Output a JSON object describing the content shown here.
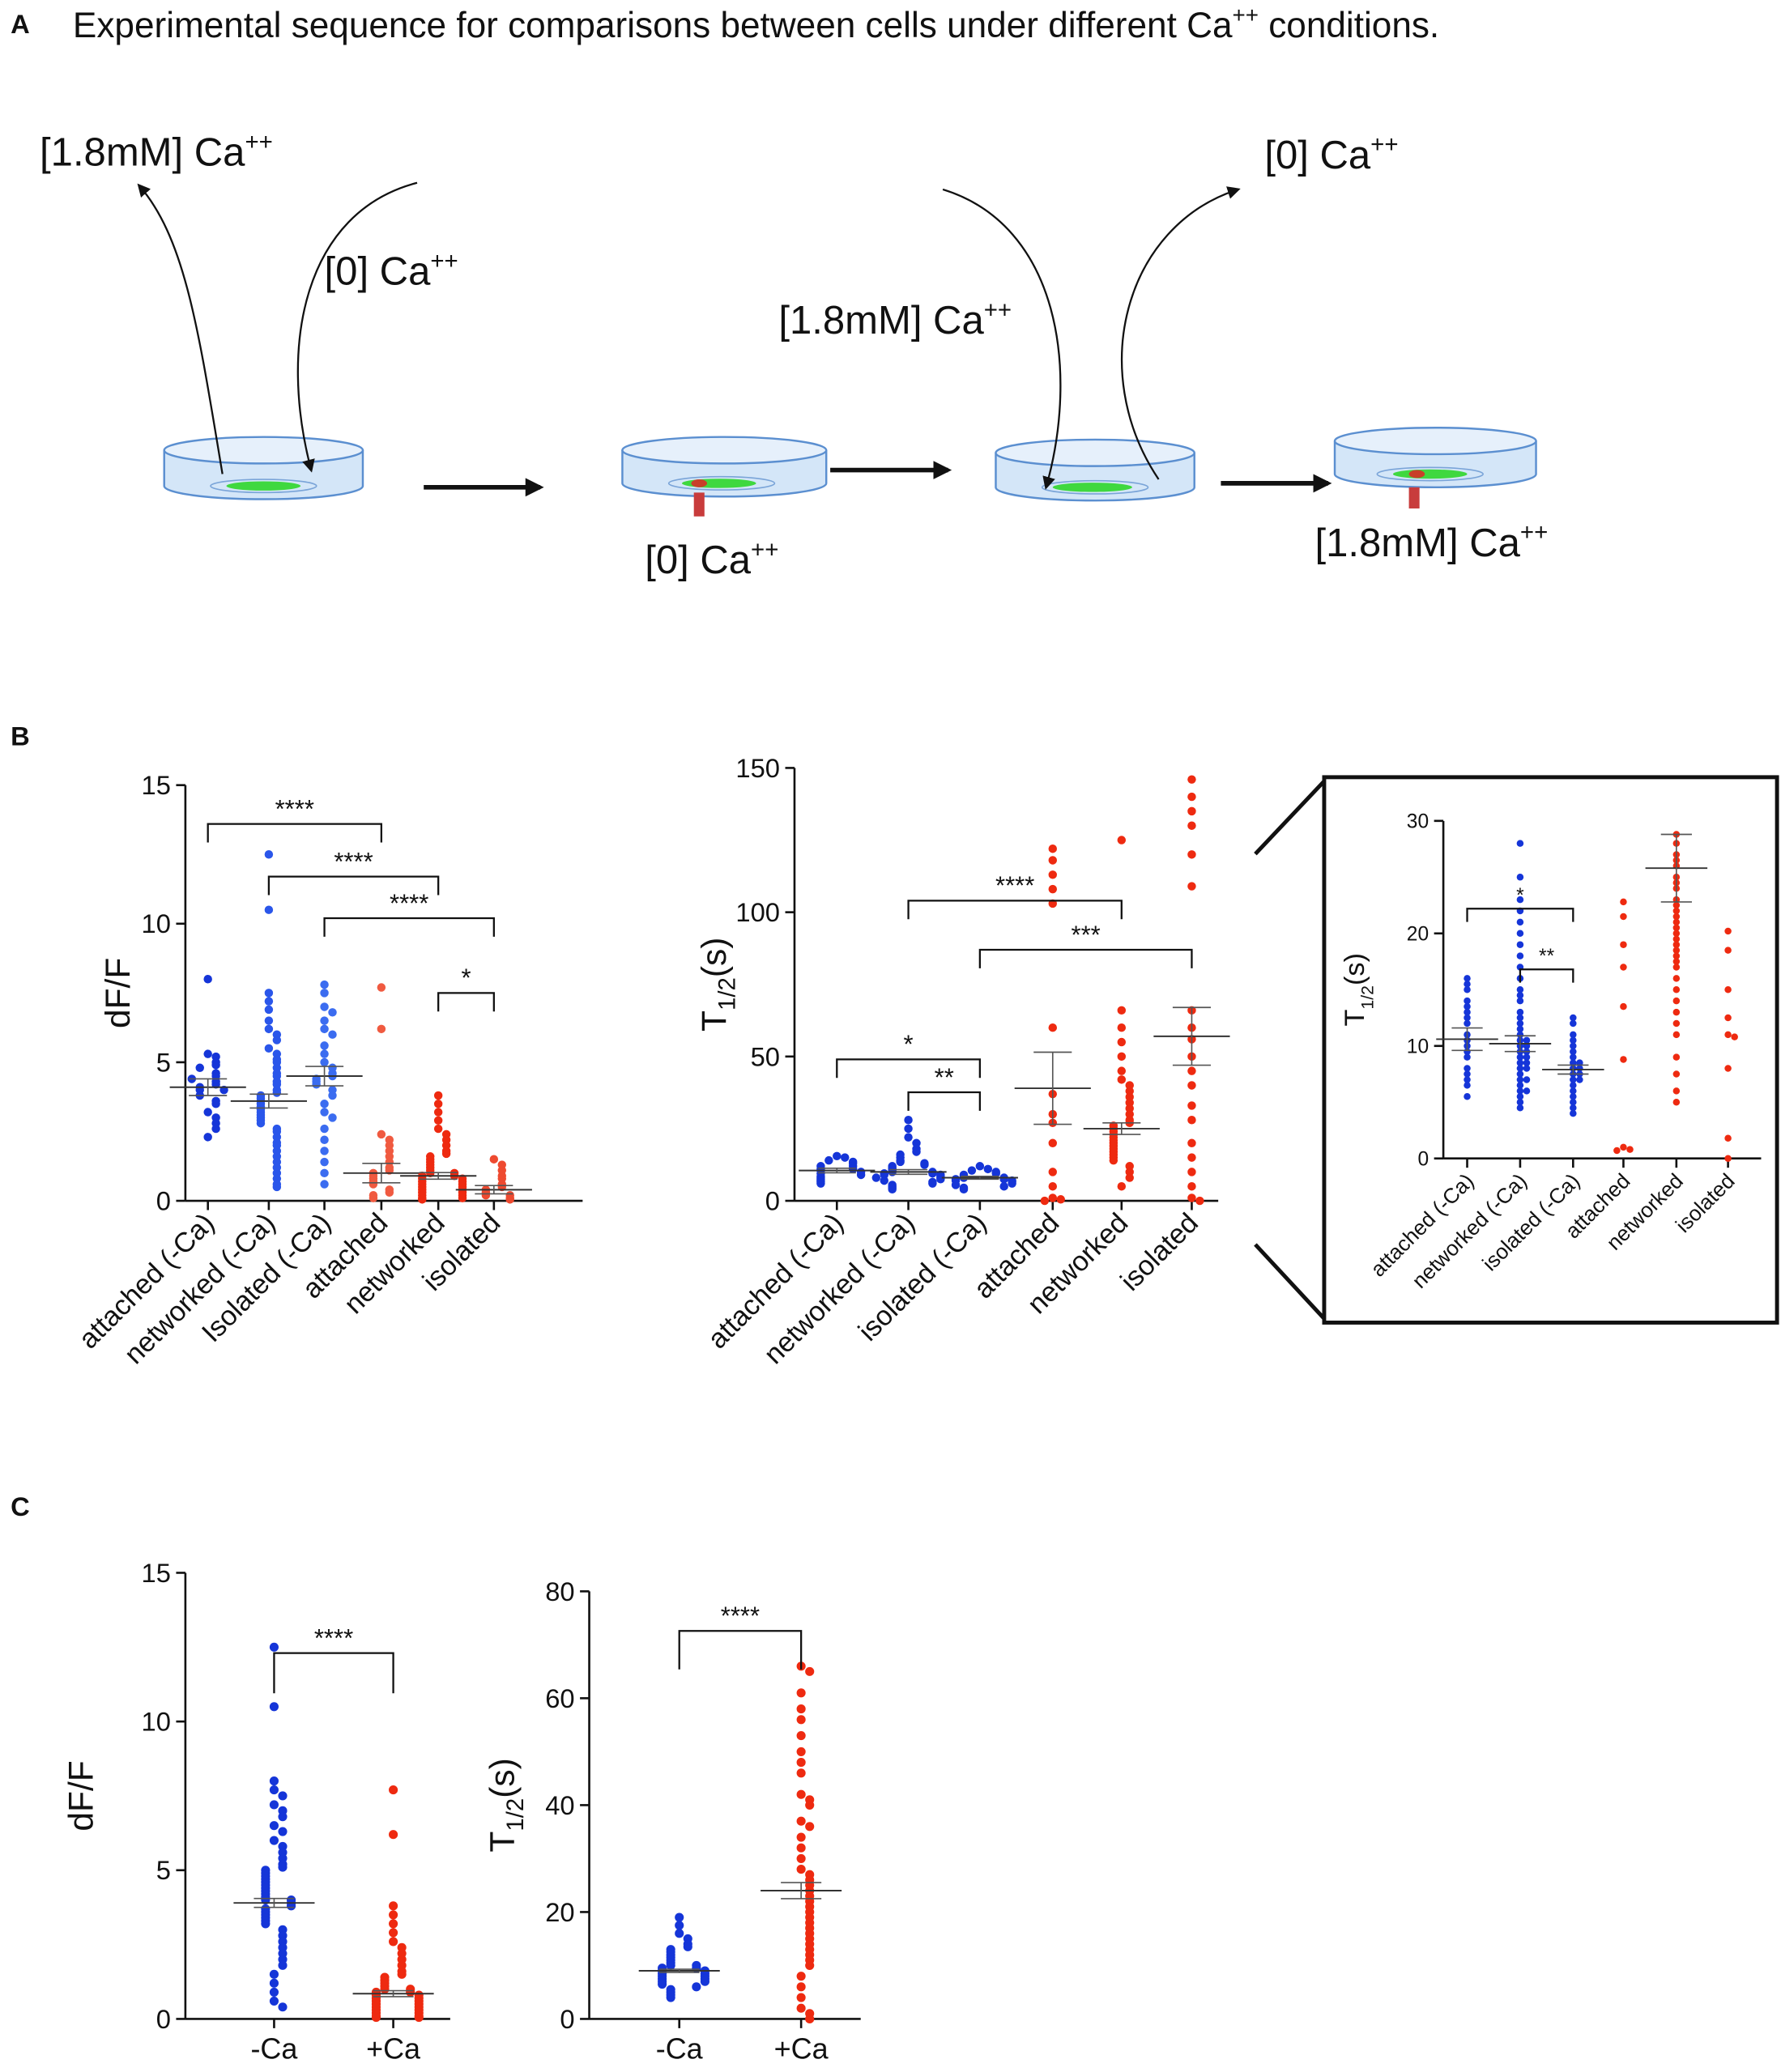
{
  "panel_a": {
    "label": "A",
    "title": {
      "before": "Experimental sequence for comparisons between cells under different Ca",
      "sup": "++",
      "after": " conditions."
    },
    "labels": [
      {
        "text": "[1.8mM] Ca",
        "sup": "++"
      },
      {
        "text": "[0] Ca",
        "sup": "++"
      },
      {
        "text": "[1.8mM] Ca",
        "sup": "++"
      },
      {
        "text": "[0] Ca",
        "sup": "++"
      },
      {
        "text": "[0] Ca",
        "sup": "++"
      },
      {
        "text": "[1.8mM] Ca",
        "sup": "++"
      }
    ]
  },
  "panel_labels": [
    "B",
    "C"
  ],
  "chart_data": [
    {
      "type": "strip",
      "ylabel": {
        "text": "dF/F"
      },
      "ylim": [
        0,
        15
      ],
      "yticks": [
        0,
        5,
        10,
        15
      ],
      "categories": [
        "attached (-Ca)",
        "networked (-Ca)",
        "Isolated (-Ca)",
        "attached",
        "networked",
        "isolated"
      ],
      "colors": [
        "#1535d8",
        "#2a56ea",
        "#3b6cf0",
        "#f05a40",
        "#ee2a10",
        "#ee4a30"
      ],
      "values": [
        [
          8.0,
          5.3,
          5.2,
          5.0,
          4.9,
          4.8,
          4.6,
          4.5,
          4.3,
          4.2,
          4.1,
          4.0,
          4.0,
          3.8,
          3.6,
          3.5,
          3.2,
          3.0,
          2.8,
          2.6,
          2.3,
          4.4
        ],
        [
          12.5,
          10.5,
          7.5,
          7.2,
          6.9,
          6.5,
          6.2,
          6.0,
          5.8,
          5.5,
          5.3,
          5.1,
          5.0,
          4.8,
          4.6,
          4.5,
          4.3,
          4.2,
          4.0,
          3.9,
          3.8,
          3.7,
          3.6,
          3.5,
          3.4,
          3.3,
          3.2,
          3.1,
          3.0,
          2.9,
          2.8,
          2.6,
          2.5,
          2.3,
          2.1,
          2.0,
          1.8,
          1.6,
          1.4,
          1.2,
          1.0,
          0.8,
          0.6,
          0.5
        ],
        [
          7.8,
          7.5,
          7.0,
          6.8,
          6.5,
          6.2,
          6.0,
          5.6,
          5.3,
          5.0,
          4.8,
          4.6,
          4.5,
          4.4,
          4.3,
          4.2,
          4.0,
          3.8,
          3.5,
          3.2,
          3.0,
          2.6,
          2.2,
          1.8,
          1.4,
          1.0,
          0.6
        ],
        [
          7.7,
          6.2,
          2.4,
          2.2,
          2.0,
          1.8,
          1.6,
          1.4,
          1.2,
          1.1,
          1.0,
          0.9,
          0.8,
          0.7,
          0.6,
          0.4,
          0.3,
          0.2,
          0.1
        ],
        [
          3.8,
          3.5,
          3.2,
          2.9,
          2.6,
          2.4,
          2.2,
          2.0,
          1.8,
          1.7,
          1.6,
          1.5,
          1.4,
          1.3,
          1.2,
          1.1,
          1.0,
          1.0,
          0.9,
          0.9,
          0.8,
          0.8,
          0.7,
          0.7,
          0.6,
          0.6,
          0.5,
          0.5,
          0.4,
          0.4,
          0.3,
          0.3,
          0.2,
          0.2,
          0.1,
          0.1,
          0.05
        ],
        [
          1.5,
          1.3,
          1.1,
          0.9,
          0.8,
          0.6,
          0.5,
          0.4,
          0.3,
          0.2,
          0.2,
          0.1,
          0.05
        ]
      ],
      "means": [
        4.1,
        3.6,
        4.5,
        1.0,
        0.9,
        0.4
      ],
      "errors": [
        0.3,
        0.25,
        0.35,
        0.35,
        0.12,
        0.15
      ],
      "brackets": [
        {
          "from": 0,
          "to": 3,
          "y": 13.6,
          "label": "****"
        },
        {
          "from": 1,
          "to": 4,
          "y": 11.7,
          "label": "****"
        },
        {
          "from": 2,
          "to": 5,
          "y": 10.2,
          "label": "****"
        },
        {
          "from": 4,
          "to": 5,
          "y": 7.5,
          "label": "*"
        }
      ]
    },
    {
      "type": "strip",
      "ylabel": {
        "text": "T",
        "sub": "1/2",
        "after": "(s)"
      },
      "ylim": [
        0,
        150
      ],
      "yticks": [
        0,
        50,
        100,
        150
      ],
      "categories": [
        "attached (-Ca)",
        "networked (-Ca)",
        "isolated (-Ca)",
        "attached",
        "networked",
        "isolated"
      ],
      "colors": [
        "#1535d8",
        "#1535d8",
        "#1535d8",
        "#ee2a10",
        "#ee2a10",
        "#ee2a10"
      ],
      "values": [
        [
          15.5,
          15,
          14,
          13.5,
          13,
          12,
          12,
          11,
          11,
          10.5,
          10,
          9.5,
          9,
          8.5,
          8,
          7.5,
          7,
          6.5,
          6
        ],
        [
          28,
          25,
          22,
          20,
          18,
          17,
          16,
          15,
          14,
          13.5,
          13,
          12.5,
          12,
          11.5,
          11,
          10.5,
          10,
          10,
          9.5,
          9.5,
          9,
          9,
          8.5,
          8,
          8,
          7.5,
          7,
          6.5,
          6,
          5.5,
          5,
          4.5,
          4
        ],
        [
          12,
          11,
          10.5,
          10,
          9.5,
          9,
          8.5,
          8,
          8,
          7.5,
          7.5,
          7,
          7,
          6.5,
          6,
          5.5,
          5,
          4.5,
          4
        ],
        [
          122,
          118,
          113,
          108,
          103,
          60,
          37,
          30,
          27,
          20,
          10,
          5,
          1,
          0.5,
          0
        ],
        [
          125,
          66,
          60,
          55,
          50,
          45,
          42,
          40,
          38,
          36,
          34,
          32,
          30,
          28,
          27,
          26,
          25,
          24,
          23,
          22,
          21,
          20,
          19,
          18,
          17,
          16,
          15,
          14,
          12,
          10,
          8,
          5
        ],
        [
          146,
          140,
          135,
          130,
          120,
          109,
          66,
          60,
          56,
          50,
          45,
          40,
          33,
          28,
          20,
          15,
          10,
          5,
          1,
          0
        ]
      ],
      "means": [
        10.5,
        10,
        8,
        39,
        25,
        57
      ],
      "errors": [
        0.8,
        0.8,
        0.5,
        12.5,
        2,
        10
      ],
      "brackets": [
        {
          "from": 0,
          "to": 2,
          "y": 49,
          "label": "*"
        },
        {
          "from": 1,
          "to": 2,
          "y": 37.6,
          "label": "**"
        },
        {
          "from": 1,
          "to": 4,
          "y": 104,
          "label": "****"
        },
        {
          "from": 2,
          "to": 5,
          "y": 87,
          "label": "***"
        }
      ]
    },
    {
      "type": "strip",
      "ylabel": {
        "text": "T",
        "sub": "1/2",
        "after": "(s)"
      },
      "ylim": [
        0,
        30
      ],
      "yticks": [
        0,
        10,
        20,
        30
      ],
      "categories": [
        "attached (-Ca)",
        "networked (-Ca)",
        "isolated (-Ca)",
        "attached",
        "networked",
        "isolated"
      ],
      "colors": [
        "#1535d8",
        "#1535d8",
        "#1535d8",
        "#ee2a10",
        "#ee2a10",
        "#ee2a10"
      ],
      "values": [
        [
          16,
          15.5,
          15,
          14,
          13.5,
          13,
          12.5,
          12,
          11,
          10.5,
          10,
          9.5,
          9,
          8,
          7.5,
          7,
          6.5,
          5.5
        ],
        [
          28,
          25,
          23,
          22,
          21,
          20,
          19,
          18,
          17,
          16,
          15,
          14.5,
          14,
          13,
          12.5,
          12,
          11.5,
          11,
          10.5,
          10.5,
          10,
          10,
          9.5,
          9.5,
          9,
          9,
          8.5,
          8.5,
          8,
          8,
          7.5,
          7,
          7,
          6.5,
          6,
          6,
          5.5,
          5,
          4.5
        ],
        [
          12.5,
          12,
          11,
          10.5,
          10,
          9.5,
          9,
          8.5,
          8.5,
          8,
          8,
          7.5,
          7.5,
          7,
          7,
          6.5,
          6,
          5.5,
          5,
          4.5,
          4
        ],
        [
          22.8,
          21.5,
          19,
          17,
          13.5,
          8.8,
          1,
          0.8,
          0.7
        ],
        [
          28.8,
          28,
          27,
          26.5,
          26,
          25,
          24.5,
          24,
          23,
          22.5,
          22,
          21.5,
          21,
          20.5,
          20,
          19.5,
          19,
          18.5,
          18,
          17.5,
          17,
          16,
          15,
          14,
          13,
          12,
          11,
          9,
          7.5,
          6,
          5
        ],
        [
          20.2,
          18.5,
          15,
          12.5,
          11,
          10.8,
          8,
          1.8,
          0
        ]
      ],
      "means": [
        10.6,
        10.2,
        7.9,
        null,
        25.8,
        null
      ],
      "errors": [
        1,
        0.7,
        0.4,
        null,
        3,
        null
      ],
      "brackets": [
        {
          "from": 0,
          "to": 2,
          "y": 22.2,
          "label": "*"
        },
        {
          "from": 1,
          "to": 2,
          "y": 16.8,
          "label": "**"
        }
      ]
    },
    {
      "type": "strip",
      "ylabel": {
        "text": "dF/F"
      },
      "ylim": [
        0,
        15
      ],
      "yticks": [
        0,
        5,
        10,
        15
      ],
      "categories": [
        "-Ca",
        "+Ca"
      ],
      "colors": [
        "#1535d8",
        "#ee2a10"
      ],
      "values": [
        [
          12.5,
          10.5,
          8,
          7.7,
          7.5,
          7.2,
          7,
          6.8,
          6.5,
          6.3,
          6,
          5.8,
          5.6,
          5.4,
          5.2,
          5.1,
          5,
          4.9,
          4.8,
          4.7,
          4.6,
          4.5,
          4.4,
          4.3,
          4.2,
          4.1,
          4,
          4,
          3.9,
          3.8,
          3.7,
          3.6,
          3.5,
          3.4,
          3.3,
          3.2,
          3,
          2.8,
          2.6,
          2.4,
          2.2,
          2,
          1.8,
          1.5,
          1.2,
          0.9,
          0.6,
          0.4
        ],
        [
          7.7,
          6.2,
          3.8,
          3.5,
          3.2,
          2.9,
          2.6,
          2.4,
          2.2,
          2,
          1.8,
          1.6,
          1.5,
          1.4,
          1.3,
          1.2,
          1.1,
          1,
          1,
          0.9,
          0.9,
          0.8,
          0.8,
          0.7,
          0.7,
          0.6,
          0.6,
          0.5,
          0.5,
          0.4,
          0.4,
          0.3,
          0.3,
          0.2,
          0.2,
          0.1,
          0.1,
          0.05,
          0.05
        ]
      ],
      "means": [
        3.9,
        0.85
      ],
      "errors": [
        0.15,
        0.1
      ],
      "brackets": [
        {
          "from": 0,
          "to": 1,
          "y": 12.3,
          "label": "****"
        }
      ]
    },
    {
      "type": "strip",
      "ylabel": {
        "text": "T",
        "sub": "1/2",
        "after": "(s)"
      },
      "ylim": [
        0,
        80
      ],
      "yticks": [
        0,
        20,
        40,
        60,
        80
      ],
      "categories": [
        "-Ca",
        "+Ca"
      ],
      "colors": [
        "#1535d8",
        "#ee2a10"
      ],
      "values": [
        [
          19,
          17.5,
          16,
          15,
          14,
          13.5,
          13,
          12.5,
          12,
          11.5,
          11,
          10.5,
          10,
          10,
          9.5,
          9.5,
          9,
          9,
          8.5,
          8.5,
          8,
          8,
          7.5,
          7.5,
          7,
          7,
          6.5,
          6,
          5.5,
          5,
          4.5,
          4
        ],
        [
          66,
          65,
          61,
          58,
          56,
          53,
          50,
          48,
          46,
          42,
          41,
          40,
          37,
          36,
          34,
          32,
          30,
          28,
          27,
          26,
          25,
          24,
          23,
          22,
          21,
          20,
          19,
          18,
          17,
          16,
          15,
          14,
          13,
          12,
          11,
          10,
          8,
          6,
          4,
          2,
          1,
          0
        ]
      ],
      "means": [
        9,
        24
      ],
      "errors": [
        0.3,
        1.5
      ],
      "brackets": [
        {
          "from": 0,
          "to": 1,
          "y": 72.6,
          "label": "****"
        }
      ]
    }
  ]
}
